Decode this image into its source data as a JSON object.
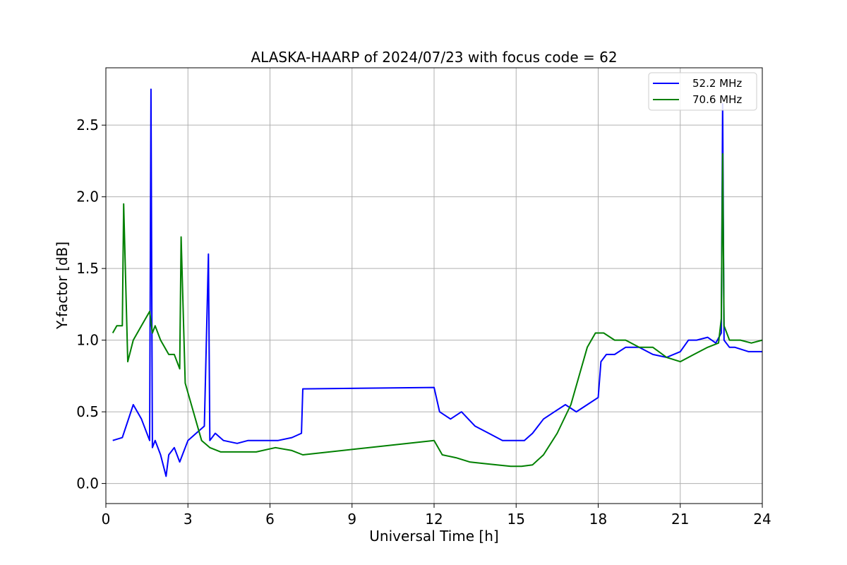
{
  "chart_data": {
    "type": "line",
    "title": "ALASKA-HAARP of 2024/07/23 with focus code = 62",
    "xlabel": "Universal Time [h]",
    "ylabel": "Y-factor [dB]",
    "xlim": [
      0,
      24
    ],
    "ylim": [
      -0.14,
      2.9
    ],
    "xticks": [
      0,
      3,
      6,
      9,
      12,
      15,
      18,
      21,
      24
    ],
    "yticks": [
      0.0,
      0.5,
      1.0,
      1.5,
      2.0,
      2.5
    ],
    "xtick_labels": [
      "0",
      "3",
      "6",
      "9",
      "12",
      "15",
      "18",
      "21",
      "24"
    ],
    "ytick_labels": [
      "0.0",
      "0.5",
      "1.0",
      "1.5",
      "2.0",
      "2.5"
    ],
    "grid": true,
    "legend_position": "top-right",
    "series": [
      {
        "name": "52.2 MHz",
        "color": "#0000ff",
        "x": [
          0.25,
          0.6,
          1.0,
          1.3,
          1.6,
          1.65,
          1.7,
          1.8,
          2.0,
          2.2,
          2.3,
          2.5,
          2.7,
          2.9,
          3.0,
          3.3,
          3.6,
          3.75,
          3.8,
          4.0,
          4.3,
          4.8,
          5.2,
          5.8,
          6.3,
          6.8,
          7.15,
          7.2,
          12.0,
          12.2,
          12.6,
          13.0,
          13.5,
          14.0,
          14.5,
          15.0,
          15.3,
          15.6,
          16.0,
          16.4,
          16.8,
          17.2,
          17.6,
          18.0,
          18.1,
          18.3,
          18.6,
          19.0,
          19.5,
          20.0,
          20.5,
          21.0,
          21.3,
          21.6,
          22.0,
          22.3,
          22.5,
          22.55,
          22.6,
          22.8,
          23.0,
          23.5,
          24.0
        ],
        "y": [
          0.3,
          0.32,
          0.55,
          0.45,
          0.3,
          2.75,
          0.25,
          0.3,
          0.2,
          0.05,
          0.2,
          0.25,
          0.15,
          0.25,
          0.3,
          0.35,
          0.4,
          1.6,
          0.3,
          0.35,
          0.3,
          0.28,
          0.3,
          0.3,
          0.3,
          0.32,
          0.35,
          0.66,
          0.67,
          0.5,
          0.45,
          0.5,
          0.4,
          0.35,
          0.3,
          0.3,
          0.3,
          0.35,
          0.45,
          0.5,
          0.55,
          0.5,
          0.55,
          0.6,
          0.85,
          0.9,
          0.9,
          0.95,
          0.95,
          0.9,
          0.88,
          0.92,
          1.0,
          1.0,
          1.02,
          0.98,
          1.05,
          2.65,
          1.0,
          0.95,
          0.95,
          0.92,
          0.92
        ]
      },
      {
        "name": "70.6 MHz",
        "color": "#008000",
        "x": [
          0.25,
          0.4,
          0.6,
          0.65,
          0.8,
          1.0,
          1.3,
          1.6,
          1.7,
          1.8,
          2.0,
          2.3,
          2.5,
          2.7,
          2.75,
          2.9,
          3.2,
          3.5,
          3.8,
          4.2,
          4.8,
          5.5,
          6.2,
          6.8,
          7.2,
          12.0,
          12.3,
          12.8,
          13.3,
          13.8,
          14.3,
          14.8,
          15.2,
          15.6,
          16.0,
          16.5,
          17.0,
          17.3,
          17.6,
          17.9,
          18.2,
          18.6,
          19.0,
          19.5,
          20.0,
          20.5,
          21.0,
          21.5,
          22.0,
          22.4,
          22.5,
          22.55,
          22.6,
          22.8,
          23.2,
          23.6,
          24.0
        ],
        "y": [
          1.05,
          1.1,
          1.1,
          1.95,
          0.85,
          1.0,
          1.1,
          1.2,
          1.05,
          1.1,
          1.0,
          0.9,
          0.9,
          0.8,
          1.72,
          0.7,
          0.5,
          0.3,
          0.25,
          0.22,
          0.22,
          0.22,
          0.25,
          0.23,
          0.2,
          0.3,
          0.2,
          0.18,
          0.15,
          0.14,
          0.13,
          0.12,
          0.12,
          0.13,
          0.2,
          0.35,
          0.55,
          0.75,
          0.95,
          1.05,
          1.05,
          1.0,
          1.0,
          0.95,
          0.95,
          0.88,
          0.85,
          0.9,
          0.95,
          0.98,
          1.15,
          2.3,
          1.1,
          1.0,
          1.0,
          0.98,
          1.0
        ]
      }
    ]
  }
}
